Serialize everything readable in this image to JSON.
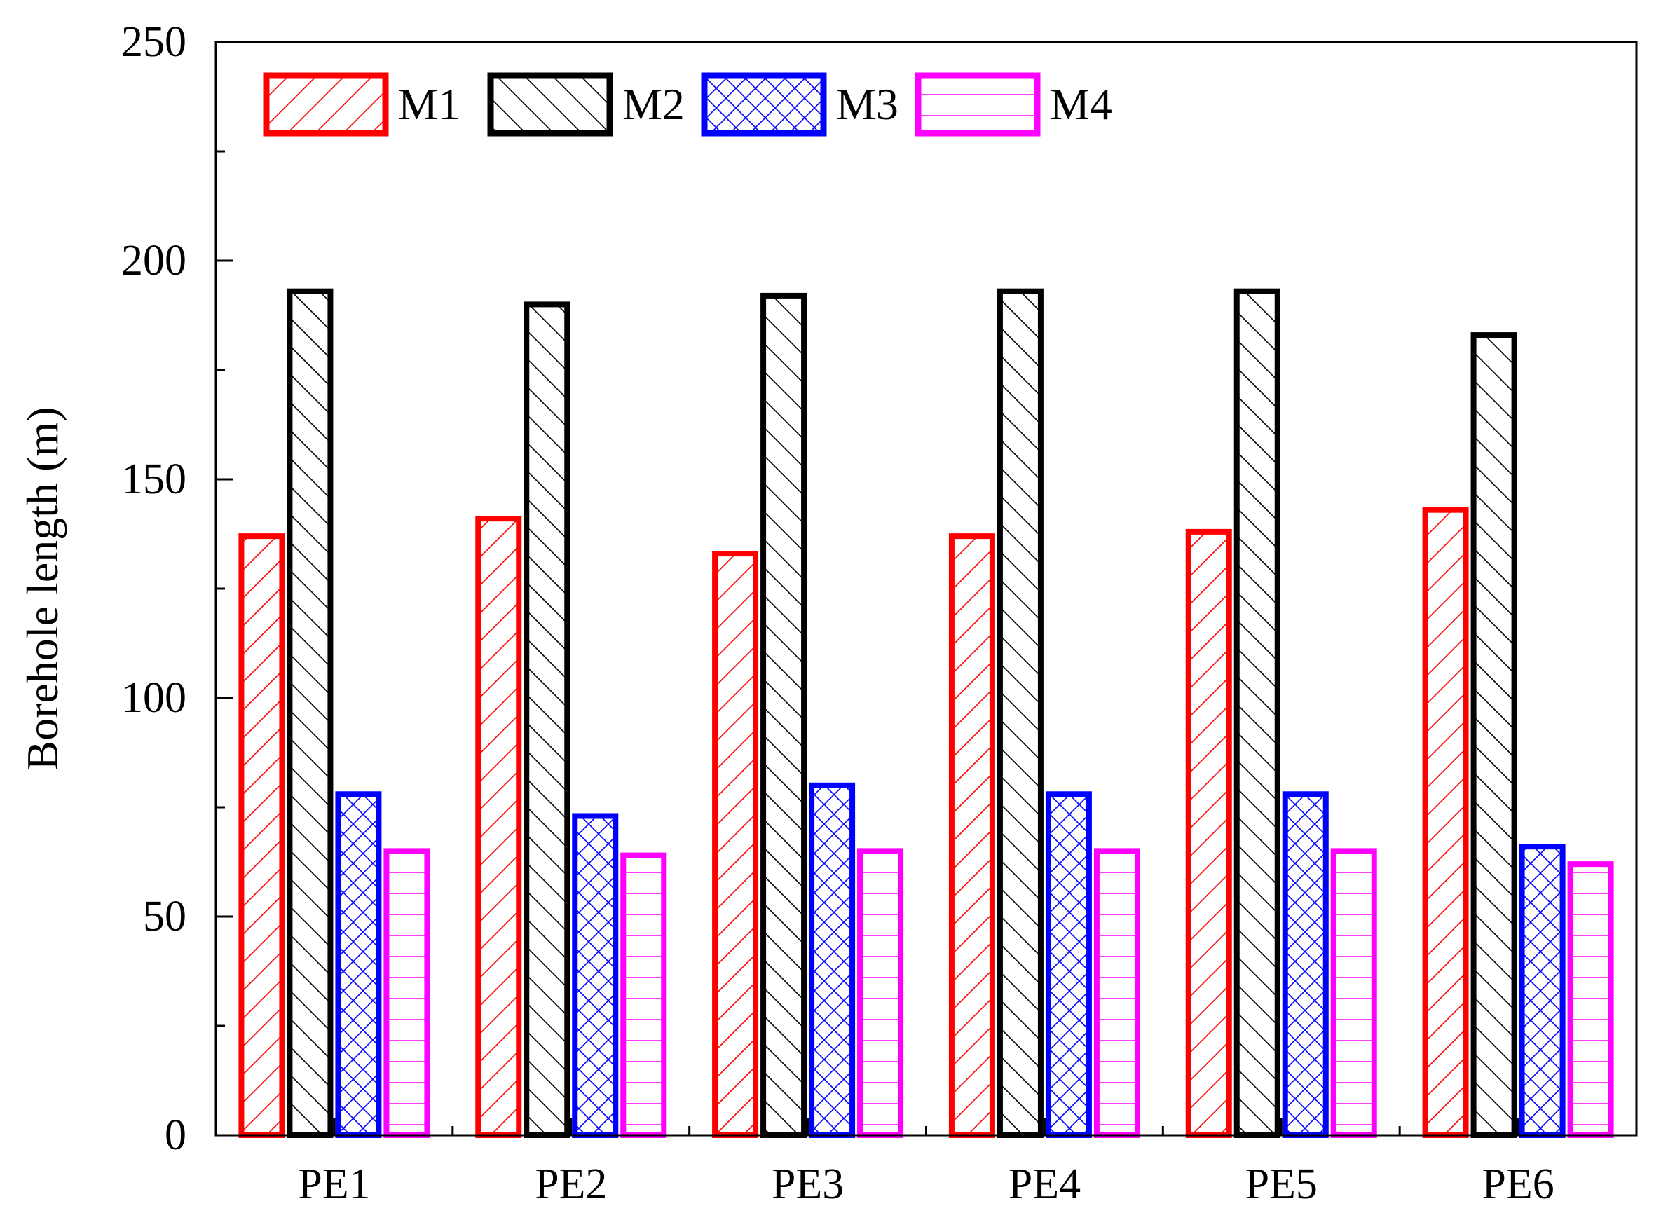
{
  "chart_data": {
    "type": "bar",
    "title": "",
    "xlabel": "",
    "ylabel": "Borehole length (m)",
    "ylim": [
      0,
      250
    ],
    "yticks": [
      0,
      50,
      100,
      150,
      200,
      250
    ],
    "categories": [
      "PE1",
      "PE2",
      "PE3",
      "PE4",
      "PE5",
      "PE6"
    ],
    "legend_position": "top-left",
    "series": [
      {
        "name": "M1",
        "color": "#ff0000",
        "hatch": "forward-diagonal",
        "values": [
          137,
          141,
          133,
          137,
          138,
          143
        ]
      },
      {
        "name": "M2",
        "color": "#000000",
        "hatch": "back-diagonal",
        "values": [
          193,
          190,
          192,
          193,
          193,
          183
        ]
      },
      {
        "name": "M3",
        "color": "#0000ff",
        "hatch": "crosshatch",
        "values": [
          78,
          73,
          80,
          78,
          78,
          66
        ]
      },
      {
        "name": "M4",
        "color": "#ff00ff",
        "hatch": "horizontal",
        "values": [
          65,
          64,
          65,
          65,
          65,
          62
        ]
      }
    ]
  }
}
